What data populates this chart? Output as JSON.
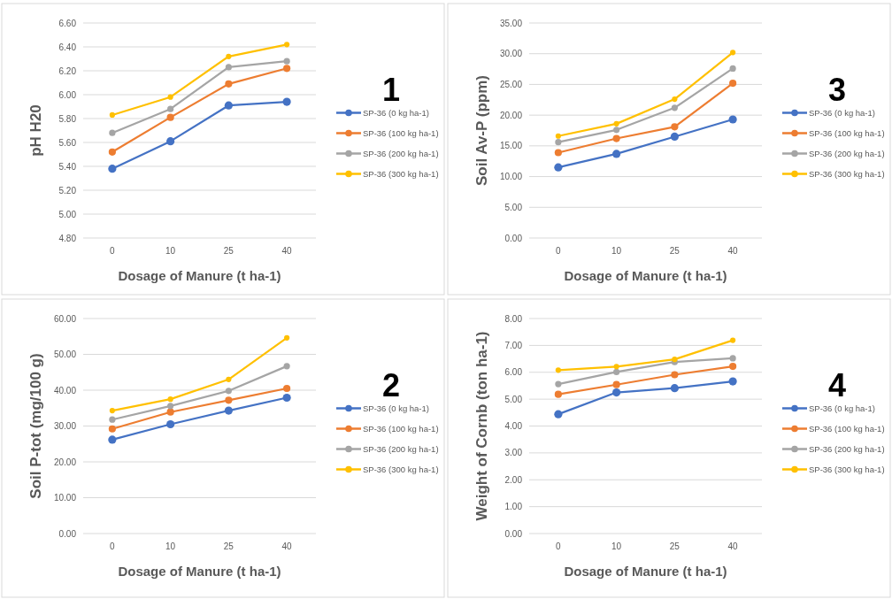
{
  "chart_data": [
    {
      "type": "line",
      "xlabel": "Dosage of Manure (t ha-1)",
      "ylabel": "pH H20",
      "annotations": [
        "1"
      ],
      "categories": [
        "0",
        "10",
        "25",
        "40"
      ],
      "ylim": [
        4.8,
        6.6
      ],
      "yticks": [
        {
          "value": 4.8,
          "label": "4.80"
        },
        {
          "value": 5.0,
          "label": "5.00"
        },
        {
          "value": 5.2,
          "label": "5.20"
        },
        {
          "value": 5.4,
          "label": "5.40"
        },
        {
          "value": 5.6,
          "label": "5.60"
        },
        {
          "value": 5.8,
          "label": "5.80"
        },
        {
          "value": 6.0,
          "label": "6.00"
        },
        {
          "value": 6.2,
          "label": "6.20"
        },
        {
          "value": 6.4,
          "label": "6.40"
        },
        {
          "value": 6.6,
          "label": "6.60"
        }
      ],
      "grid": "y",
      "legend": "right",
      "marker": "circle",
      "series": [
        {
          "name": "SP-36 (0 kg ha-1)",
          "color": "#4472c4",
          "values": [
            5.38,
            5.61,
            5.91,
            5.94
          ]
        },
        {
          "name": "SP-36 (100 kg ha-1)",
          "color": "#ed7d31",
          "values": [
            5.52,
            5.81,
            6.09,
            6.22
          ]
        },
        {
          "name": "SP-36 (200 kg ha-1)",
          "color": "#a5a5a5",
          "values": [
            5.68,
            5.88,
            6.23,
            6.28
          ]
        },
        {
          "name": "SP-36 (300 kg ha-1)",
          "color": "#ffc000",
          "values": [
            5.83,
            5.98,
            6.32,
            6.42
          ]
        }
      ]
    },
    {
      "type": "line",
      "xlabel": "Dosage of Manure (t ha-1)",
      "ylabel": "Soil Av-P (ppm)",
      "annotations": [
        "3"
      ],
      "categories": [
        "0",
        "10",
        "25",
        "40"
      ],
      "ylim": [
        0,
        35
      ],
      "yticks": [
        {
          "value": 0,
          "label": "0.00"
        },
        {
          "value": 5,
          "label": "5.00"
        },
        {
          "value": 10,
          "label": "10.00"
        },
        {
          "value": 15,
          "label": "15.00"
        },
        {
          "value": 20,
          "label": "20.00"
        },
        {
          "value": 25,
          "label": "25.00"
        },
        {
          "value": 30,
          "label": "30.00"
        },
        {
          "value": 35,
          "label": "35.00"
        }
      ],
      "grid": "y",
      "legend": "right",
      "marker": "circle",
      "series": [
        {
          "name": "SP-36 (0 kg ha-1)",
          "color": "#4472c4",
          "values": [
            11.5,
            13.7,
            16.5,
            19.3
          ]
        },
        {
          "name": "SP-36 (100 kg ha-1)",
          "color": "#ed7d31",
          "values": [
            13.9,
            16.2,
            18.1,
            25.2
          ]
        },
        {
          "name": "SP-36 (200 kg ha-1)",
          "color": "#a5a5a5",
          "values": [
            15.6,
            17.6,
            21.2,
            27.6
          ]
        },
        {
          "name": "SP-36 (300 kg ha-1)",
          "color": "#ffc000",
          "values": [
            16.6,
            18.6,
            22.6,
            30.2
          ]
        }
      ]
    },
    {
      "type": "line",
      "xlabel": "Dosage of Manure (t ha-1)",
      "ylabel": "Soil P-tot (mg/100 g)",
      "annotations": [
        "2"
      ],
      "categories": [
        "0",
        "10",
        "25",
        "40"
      ],
      "ylim": [
        0,
        60
      ],
      "yticks": [
        {
          "value": 0,
          "label": "0.00"
        },
        {
          "value": 10,
          "label": "10.00"
        },
        {
          "value": 20,
          "label": "20.00"
        },
        {
          "value": 30,
          "label": "30.00"
        },
        {
          "value": 40,
          "label": "40.00"
        },
        {
          "value": 50,
          "label": "50.00"
        },
        {
          "value": 60,
          "label": "60.00"
        }
      ],
      "grid": "y",
      "legend": "right",
      "marker": "circle",
      "series": [
        {
          "name": "SP-36 (0 kg ha-1)",
          "color": "#4472c4",
          "values": [
            26.2,
            30.5,
            34.3,
            37.9
          ]
        },
        {
          "name": "SP-36 (100 kg ha-1)",
          "color": "#ed7d31",
          "values": [
            29.2,
            33.9,
            37.2,
            40.5
          ]
        },
        {
          "name": "SP-36 (200 kg ha-1)",
          "color": "#a5a5a5",
          "values": [
            31.8,
            35.6,
            39.8,
            46.7
          ]
        },
        {
          "name": "SP-36 (300 kg ha-1)",
          "color": "#ffc000",
          "values": [
            34.3,
            37.5,
            43.0,
            54.6
          ]
        }
      ]
    },
    {
      "type": "line",
      "xlabel": "Dosage of Manure (t ha-1)",
      "ylabel": "Weight of Cornb (ton ha-1)",
      "annotations": [
        "4"
      ],
      "categories": [
        "0",
        "10",
        "25",
        "40"
      ],
      "ylim": [
        0,
        8
      ],
      "yticks": [
        {
          "value": 0,
          "label": "0.00"
        },
        {
          "value": 1,
          "label": "1.00"
        },
        {
          "value": 2,
          "label": "2.00"
        },
        {
          "value": 3,
          "label": "3.00"
        },
        {
          "value": 4,
          "label": "4.00"
        },
        {
          "value": 5,
          "label": "5.00"
        },
        {
          "value": 6,
          "label": "6.00"
        },
        {
          "value": 7,
          "label": "7.00"
        },
        {
          "value": 8,
          "label": "8.00"
        }
      ],
      "grid": "y",
      "legend": "right",
      "marker": "circle",
      "series": [
        {
          "name": "SP-36 (0 kg ha-1)",
          "color": "#4472c4",
          "values": [
            4.44,
            5.25,
            5.41,
            5.66
          ]
        },
        {
          "name": "SP-36 (100 kg ha-1)",
          "color": "#ed7d31",
          "values": [
            5.18,
            5.54,
            5.91,
            6.22
          ]
        },
        {
          "name": "SP-36 (200 kg ha-1)",
          "color": "#a5a5a5",
          "values": [
            5.56,
            6.01,
            6.38,
            6.52
          ]
        },
        {
          "name": "SP-36 (300 kg ha-1)",
          "color": "#ffc000",
          "values": [
            6.08,
            6.21,
            6.48,
            7.19
          ]
        }
      ]
    }
  ]
}
